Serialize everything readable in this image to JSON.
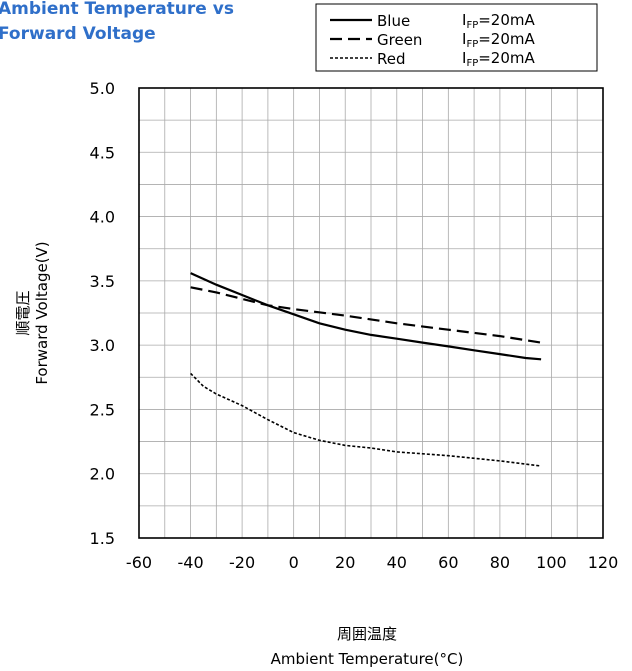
{
  "chart_data": {
    "type": "line",
    "title_lines": [
      "Ambient Temperature vs",
      "Forward Voltage"
    ],
    "title_color": "#2f6fc9",
    "xlabel_jp": "周囲温度",
    "xlabel": "Ambient Temperature(°C)",
    "ylabel_jp": "順電圧",
    "ylabel": "Forward Voltage(V)",
    "xlim": [
      -60,
      120
    ],
    "ylim": [
      1.5,
      5.0
    ],
    "x_ticks": [
      -60,
      -40,
      -20,
      0,
      20,
      40,
      60,
      80,
      100,
      120
    ],
    "y_ticks": [
      "1.5",
      "2.0",
      "2.5",
      "3.0",
      "3.5",
      "4.0",
      "4.5",
      "5.0"
    ],
    "grid": true,
    "legend_position": "top-right",
    "series": [
      {
        "name": "Blue",
        "condition": "IFP=20mA",
        "cond_main": "I",
        "cond_sub": "FP",
        "cond_rest": "=20mA",
        "style": "solid",
        "color": "#000000",
        "points": [
          [
            -40,
            3.56
          ],
          [
            -30,
            3.47
          ],
          [
            -20,
            3.39
          ],
          [
            -10,
            3.31
          ],
          [
            0,
            3.24
          ],
          [
            10,
            3.17
          ],
          [
            20,
            3.12
          ],
          [
            30,
            3.08
          ],
          [
            40,
            3.05
          ],
          [
            50,
            3.02
          ],
          [
            60,
            2.99
          ],
          [
            70,
            2.96
          ],
          [
            80,
            2.93
          ],
          [
            90,
            2.9
          ],
          [
            96,
            2.89
          ]
        ]
      },
      {
        "name": "Green",
        "condition": "IFP=20mA",
        "cond_main": "I",
        "cond_sub": "FP",
        "cond_rest": "=20mA",
        "style": "dashed",
        "color": "#000000",
        "points": [
          [
            -40,
            3.45
          ],
          [
            -30,
            3.41
          ],
          [
            -20,
            3.36
          ],
          [
            -10,
            3.31
          ],
          [
            0,
            3.28
          ],
          [
            20,
            3.23
          ],
          [
            40,
            3.17
          ],
          [
            60,
            3.12
          ],
          [
            80,
            3.07
          ],
          [
            96,
            3.02
          ]
        ]
      },
      {
        "name": "Red",
        "condition": "IFP=20mA",
        "cond_main": "I",
        "cond_sub": "FP",
        "cond_rest": "=20mA",
        "style": "dotted",
        "color": "#000000",
        "points": [
          [
            -40,
            2.78
          ],
          [
            -35,
            2.68
          ],
          [
            -30,
            2.62
          ],
          [
            -20,
            2.53
          ],
          [
            -10,
            2.42
          ],
          [
            0,
            2.32
          ],
          [
            10,
            2.26
          ],
          [
            20,
            2.22
          ],
          [
            30,
            2.2
          ],
          [
            40,
            2.17
          ],
          [
            60,
            2.14
          ],
          [
            80,
            2.1
          ],
          [
            96,
            2.06
          ]
        ]
      }
    ]
  }
}
